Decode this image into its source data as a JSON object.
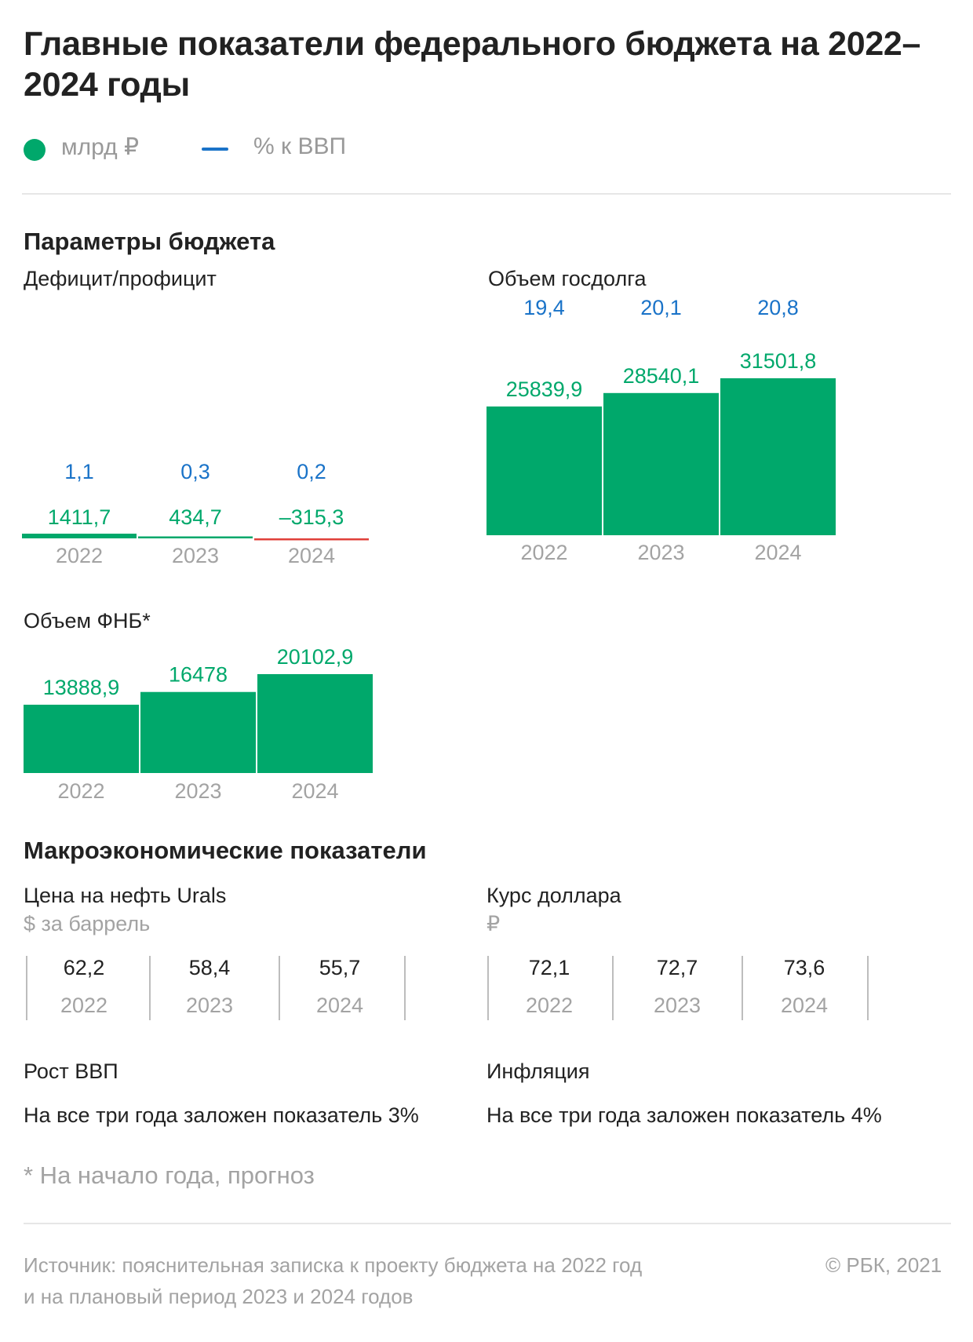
{
  "title": "Главные показатели федерального бюджета на 2022–2024 годы",
  "legend": {
    "bn_label": "млрд ₽",
    "gdp_label": "% к ВВП"
  },
  "colors": {
    "green": "#00a86b",
    "blue": "#1a73c8",
    "red": "#e0403a",
    "grey": "#a3a3a3"
  },
  "section_budget": "Параметры бюджета",
  "section_macro": "Макроэкономические показатели",
  "chart_data": [
    {
      "id": "deficit",
      "type": "bar",
      "title": "Дефицит/профицит",
      "categories": [
        "2022",
        "2023",
        "2024"
      ],
      "series": [
        {
          "name": "млрд ₽",
          "values": [
            1411.7,
            434.7,
            -315.3
          ],
          "labels": [
            "1411,7",
            "434,7",
            "–315,3"
          ]
        },
        {
          "name": "% к ВВП",
          "values": [
            1.1,
            0.3,
            0.2
          ],
          "labels": [
            "1,1",
            "0,3",
            "0,2"
          ]
        }
      ],
      "bar_colors": [
        "#00a86b",
        "#00a86b",
        "#e0403a"
      ]
    },
    {
      "id": "debt",
      "type": "bar",
      "title": "Объем госдолга",
      "categories": [
        "2022",
        "2023",
        "2024"
      ],
      "series": [
        {
          "name": "млрд ₽",
          "values": [
            25839.9,
            28540.1,
            31501.8
          ],
          "labels": [
            "25839,9",
            "28540,1",
            "31501,8"
          ]
        },
        {
          "name": "% к ВВП",
          "values": [
            19.4,
            20.1,
            20.8
          ],
          "labels": [
            "19,4",
            "20,1",
            "20,8"
          ]
        }
      ]
    },
    {
      "id": "fnb",
      "type": "bar",
      "title": "Объем ФНБ*",
      "categories": [
        "2022",
        "2023",
        "2024"
      ],
      "series": [
        {
          "name": "млрд ₽",
          "values": [
            13888.9,
            16478,
            20102.9
          ],
          "labels": [
            "13888,9",
            "16478",
            "20102,9"
          ]
        }
      ]
    },
    {
      "id": "oil",
      "type": "table",
      "title": "Цена на нефть Urals",
      "unit": "$ за баррель",
      "categories": [
        "2022",
        "2023",
        "2024"
      ],
      "values": [
        62.2,
        58.4,
        55.7
      ],
      "labels": [
        "62,2",
        "58,4",
        "55,7"
      ]
    },
    {
      "id": "usd",
      "type": "table",
      "title": "Курс доллара",
      "unit": "₽",
      "categories": [
        "2022",
        "2023",
        "2024"
      ],
      "values": [
        72.1,
        72.7,
        73.6
      ],
      "labels": [
        "72,1",
        "72,7",
        "73,6"
      ]
    }
  ],
  "gdp_growth": {
    "title": "Рост ВВП",
    "text": "На все три года заложен показатель 3%"
  },
  "inflation": {
    "title": "Инфляция",
    "text": "На все три года заложен показатель 4%"
  },
  "footnote": "* На начало года, прогноз",
  "source_line1": "Источник: пояснительная записка к проекту бюджета на 2022 год",
  "source_line2": "и на плановый период 2023 и 2024 годов",
  "copyright": "© РБК, 2021"
}
